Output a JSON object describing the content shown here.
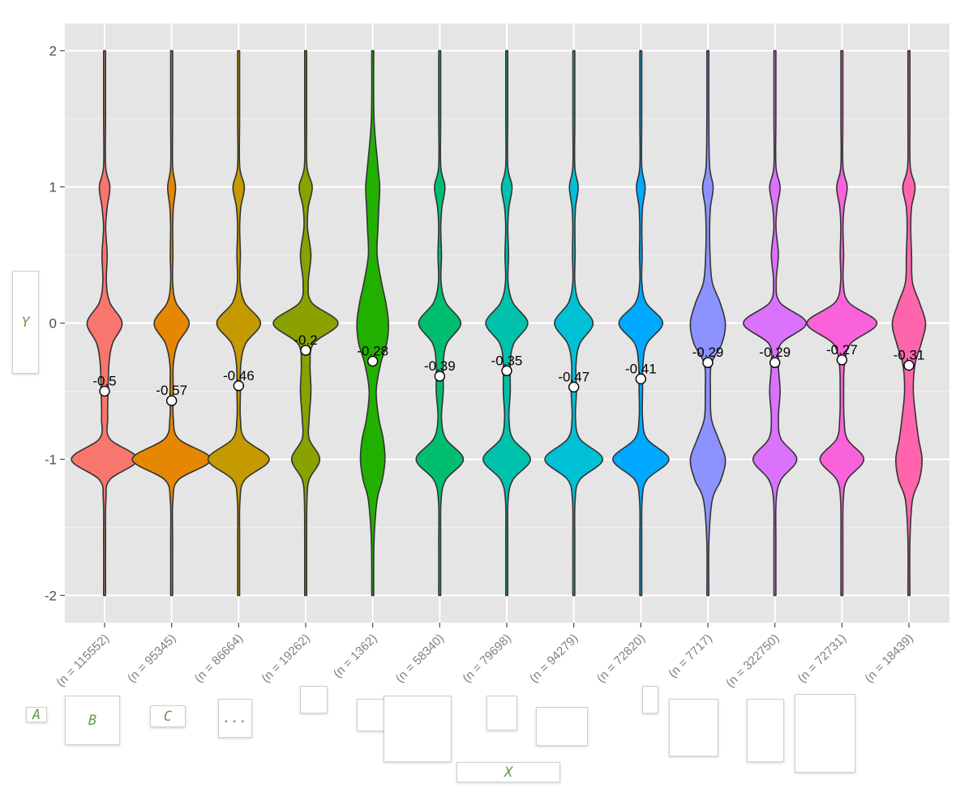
{
  "chart_data": {
    "type": "violin",
    "title": "",
    "xlabel": "X",
    "ylabel": "Y",
    "ylim": [
      -2.2,
      2.2
    ],
    "yticks": [
      2,
      1,
      0,
      -1,
      -2
    ],
    "ytick_labels": [
      "2",
      "1",
      "0",
      "-1",
      "-2"
    ],
    "grid": true,
    "categories": [
      "(n = 115552)",
      "(n = 95345)",
      "(n = 86664)",
      "(n = 19262)",
      "(n = 1362)",
      "(n = 58340)",
      "(n = 79698)",
      "(n = 94279)",
      "(n = 72820)",
      "(n = 7717)",
      "(n = 322750)",
      "(n = 72731)",
      "(n = 18439)"
    ],
    "means": [
      -0.5,
      -0.57,
      -0.46,
      -0.2,
      -0.28,
      -0.39,
      -0.35,
      -0.47,
      -0.41,
      -0.29,
      -0.29,
      -0.27,
      -0.31
    ],
    "mean_labels": [
      "-0.5",
      "-0.57",
      "-0.46",
      "-0.2",
      "-0.28",
      "-0.39",
      "-0.35",
      "-0.47",
      "-0.41",
      "-0.29",
      "-0.29",
      "-0.27",
      "-0.31"
    ],
    "colors": [
      "#F8766D",
      "#E58700",
      "#C99800",
      "#A3A500",
      "#6BB100",
      "#00BA38",
      "#00BF7D",
      "#00C0AF",
      "#00BCD8",
      "#00B0F6",
      "#619CFF",
      "#B983FF",
      "#E76BF3",
      "#FD61D1",
      "#FF67A4"
    ],
    "fills": [
      "#F8766D",
      "#E58700",
      "#C49A00",
      "#8AA100",
      "#22B000",
      "#00BE70",
      "#00C1AB",
      "#00C0D6",
      "#00A9FF",
      "#8C93FF",
      "#DA72FB",
      "#FA62DB",
      "#FF65AC"
    ],
    "violin_widths": {
      "y_points": [
        -2.0,
        -1.6,
        -1.3,
        -1.15,
        -1.0,
        -0.85,
        -0.7,
        -0.5,
        -0.3,
        -0.15,
        0.0,
        0.15,
        0.3,
        0.5,
        0.7,
        0.85,
        1.0,
        1.15,
        1.5,
        2.0
      ],
      "series": [
        [
          0.006,
          0.008,
          0.015,
          0.06,
          0.38,
          0.06,
          0.035,
          0.04,
          0.05,
          0.09,
          0.2,
          0.06,
          0.02,
          0.03,
          0.012,
          0.03,
          0.06,
          0.012,
          0.008,
          0.006
        ],
        [
          0.006,
          0.008,
          0.015,
          0.08,
          0.45,
          0.08,
          0.02,
          0.018,
          0.02,
          0.07,
          0.2,
          0.05,
          0.012,
          0.015,
          0.012,
          0.02,
          0.045,
          0.01,
          0.008,
          0.006
        ],
        [
          0.006,
          0.008,
          0.015,
          0.07,
          0.35,
          0.07,
          0.02,
          0.02,
          0.025,
          0.08,
          0.25,
          0.07,
          0.015,
          0.02,
          0.012,
          0.025,
          0.065,
          0.012,
          0.008,
          0.006
        ],
        [
          0.006,
          0.008,
          0.015,
          0.04,
          0.16,
          0.04,
          0.04,
          0.06,
          0.05,
          0.09,
          0.37,
          0.07,
          0.03,
          0.06,
          0.02,
          0.03,
          0.075,
          0.015,
          0.008,
          0.006
        ],
        [
          0.008,
          0.015,
          0.05,
          0.11,
          0.14,
          0.12,
          0.07,
          0.04,
          0.09,
          0.16,
          0.18,
          0.15,
          0.1,
          0.05,
          0.06,
          0.07,
          0.08,
          0.06,
          0.015,
          0.008
        ],
        [
          0.006,
          0.008,
          0.015,
          0.07,
          0.27,
          0.07,
          0.02,
          0.04,
          0.04,
          0.08,
          0.24,
          0.07,
          0.015,
          0.02,
          0.012,
          0.025,
          0.06,
          0.012,
          0.008,
          0.006
        ],
        [
          0.006,
          0.008,
          0.015,
          0.07,
          0.27,
          0.07,
          0.025,
          0.04,
          0.04,
          0.08,
          0.24,
          0.07,
          0.015,
          0.02,
          0.012,
          0.025,
          0.06,
          0.012,
          0.008,
          0.006
        ],
        [
          0.006,
          0.008,
          0.015,
          0.07,
          0.33,
          0.07,
          0.02,
          0.03,
          0.025,
          0.07,
          0.22,
          0.06,
          0.012,
          0.015,
          0.012,
          0.02,
          0.05,
          0.01,
          0.008,
          0.006
        ],
        [
          0.006,
          0.008,
          0.015,
          0.07,
          0.32,
          0.07,
          0.02,
          0.02,
          0.025,
          0.07,
          0.25,
          0.06,
          0.012,
          0.015,
          0.012,
          0.02,
          0.05,
          0.01,
          0.008,
          0.006
        ],
        [
          0.008,
          0.012,
          0.05,
          0.15,
          0.2,
          0.12,
          0.04,
          0.03,
          0.04,
          0.16,
          0.2,
          0.14,
          0.05,
          0.025,
          0.02,
          0.03,
          0.06,
          0.02,
          0.01,
          0.008
        ],
        [
          0.006,
          0.008,
          0.015,
          0.07,
          0.25,
          0.07,
          0.04,
          0.06,
          0.04,
          0.07,
          0.36,
          0.06,
          0.015,
          0.04,
          0.012,
          0.025,
          0.06,
          0.012,
          0.008,
          0.006
        ],
        [
          0.006,
          0.008,
          0.015,
          0.06,
          0.25,
          0.06,
          0.025,
          0.02,
          0.03,
          0.1,
          0.4,
          0.08,
          0.015,
          0.02,
          0.012,
          0.025,
          0.06,
          0.012,
          0.008,
          0.006
        ],
        [
          0.008,
          0.01,
          0.04,
          0.12,
          0.15,
          0.11,
          0.08,
          0.05,
          0.07,
          0.14,
          0.19,
          0.12,
          0.04,
          0.03,
          0.02,
          0.03,
          0.07,
          0.015,
          0.01,
          0.006
        ]
      ]
    }
  }
}
